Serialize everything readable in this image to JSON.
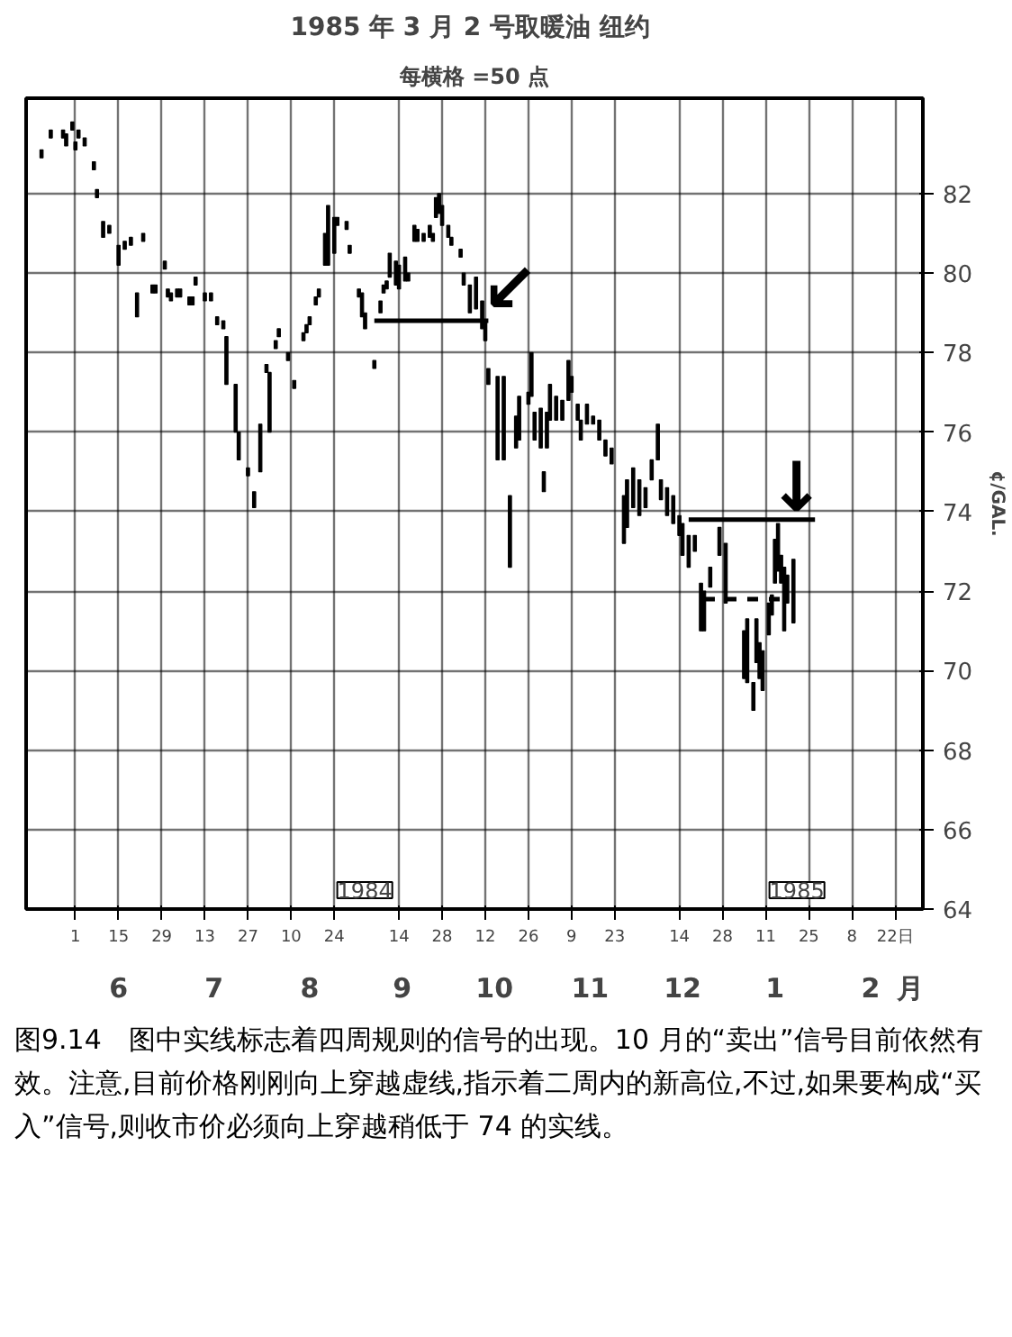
{
  "chart_data": {
    "type": "bar",
    "title": "1985 年 3 月 2 号取暖油  纽约",
    "subtitle": "每横格 =50 点",
    "ylabel": "¢/GAL.",
    "series": [
      {
        "color": "#000000",
        "x": [
          "1984-05-21",
          "1984-05-24",
          "1984-05-28",
          "1984-05-29",
          "1984-05-31",
          "1984-06-01",
          "1984-06-02",
          "1984-06-04",
          "1984-06-07",
          "1984-06-08",
          "1984-06-10",
          "1984-06-12",
          "1984-06-15",
          "1984-06-17",
          "1984-06-19",
          "1984-06-21",
          "1984-06-23",
          "1984-06-26",
          "1984-06-27",
          "1984-06-30",
          "1984-07-01",
          "1984-07-02",
          "1984-07-04",
          "1984-07-05",
          "1984-07-08",
          "1984-07-09",
          "1984-07-10",
          "1984-07-13",
          "1984-07-15",
          "1984-07-17",
          "1984-07-19",
          "1984-07-20",
          "1984-07-23",
          "1984-07-24",
          "1984-07-27",
          "1984-07-29",
          "1984-07-31",
          "1984-08-02",
          "1984-08-03",
          "1984-08-05",
          "1984-08-06",
          "1984-08-09",
          "1984-08-11",
          "1984-08-14",
          "1984-08-15",
          "1984-08-16",
          "1984-08-18",
          "1984-08-19",
          "1984-08-21",
          "1984-08-22",
          "1984-08-24",
          "1984-08-25",
          "1984-08-28",
          "1984-08-29",
          "1984-09-01",
          "1984-09-02",
          "1984-09-03",
          "1984-09-06",
          "1984-09-08",
          "1984-09-09",
          "1984-09-10",
          "1984-09-11",
          "1984-09-13",
          "1984-09-14",
          "1984-09-16",
          "1984-09-17",
          "1984-09-19",
          "1984-09-20",
          "1984-09-22",
          "1984-09-24",
          "1984-09-25",
          "1984-09-26",
          "1984-09-27",
          "1984-09-28",
          "1984-09-30",
          "1984-10-01",
          "1984-10-04",
          "1984-10-05",
          "1984-10-07",
          "1984-10-09",
          "1984-10-11",
          "1984-10-12",
          "1984-10-13",
          "1984-10-16",
          "1984-10-18",
          "1984-10-20",
          "1984-10-22",
          "1984-10-23",
          "1984-10-26",
          "1984-10-27",
          "1984-10-28",
          "1984-10-30",
          "1984-10-31",
          "1984-11-01",
          "1984-11-02",
          "1984-11-04",
          "1984-11-06",
          "1984-11-08",
          "1984-11-09",
          "1984-11-11",
          "1984-11-12",
          "1984-11-14",
          "1984-11-16",
          "1984-11-18",
          "1984-11-20",
          "1984-11-22",
          "1984-11-26",
          "1984-11-27",
          "1984-11-29",
          "1984-12-01",
          "1984-12-03",
          "1984-12-05",
          "1984-12-07",
          "1984-12-08",
          "1984-12-10",
          "1984-12-12",
          "1984-12-14",
          "1984-12-15",
          "1984-12-17",
          "1984-12-19",
          "1984-12-21",
          "1984-12-22",
          "1984-12-24",
          "1984-12-27",
          "1984-12-29",
          "1985-01-04",
          "1985-01-05",
          "1985-01-07",
          "1985-01-08",
          "1985-01-09",
          "1985-01-10",
          "1985-01-12",
          "1985-01-13",
          "1985-01-14",
          "1985-01-15",
          "1985-01-16",
          "1985-01-17",
          "1985-01-18",
          "1985-01-20"
        ],
        "base": [
          82.9,
          83.4,
          83.4,
          83.2,
          83.6,
          83.1,
          83.4,
          83.2,
          82.6,
          81.9,
          80.9,
          81.0,
          80.2,
          80.6,
          80.7,
          78.9,
          80.8,
          79.5,
          79.5,
          80.1,
          79.4,
          79.3,
          79.4,
          79.4,
          79.2,
          79.2,
          79.7,
          79.3,
          79.3,
          78.7,
          78.6,
          77.2,
          76.0,
          75.3,
          74.9,
          74.1,
          75.0,
          77.5,
          76.0,
          78.1,
          78.4,
          77.8,
          77.1,
          78.3,
          78.5,
          78.7,
          79.2,
          79.4,
          80.2,
          80.2,
          80.5,
          81.2,
          81.1,
          80.5,
          79.4,
          78.9,
          78.6,
          77.6,
          79.0,
          79.5,
          79.6,
          79.9,
          79.7,
          79.6,
          79.8,
          79.8,
          80.8,
          80.8,
          80.8,
          80.9,
          80.8,
          81.4,
          81.5,
          81.2,
          80.9,
          80.7,
          80.4,
          79.7,
          79.0,
          79.1,
          78.6,
          78.3,
          77.2,
          75.3,
          75.3,
          72.6,
          75.6,
          75.8,
          76.7,
          76.9,
          75.8,
          75.6,
          74.5,
          75.6,
          76.3,
          76.3,
          76.3,
          76.8,
          77.0,
          76.3,
          75.8,
          76.2,
          76.2,
          75.8,
          75.4,
          75.2,
          73.2,
          73.6,
          74.1,
          73.9,
          74.1,
          74.8,
          75.3,
          74.3,
          73.9,
          73.7,
          73.4,
          72.9,
          72.6,
          73.0,
          71.0,
          71.0,
          72.1,
          72.9,
          71.7,
          69.8,
          69.7,
          69.0,
          70.2,
          69.8,
          69.5,
          70.9,
          71.4,
          72.2,
          72.5,
          72.2,
          71.0,
          71.7,
          71.2
        ],
        "values": [
          0.2,
          0.2,
          0.2,
          0.3,
          0.2,
          0.2,
          0.2,
          0.2,
          0.2,
          0.2,
          0.4,
          0.2,
          0.5,
          0.2,
          0.2,
          0.6,
          0.2,
          0.2,
          0.2,
          0.2,
          0.2,
          0.2,
          0.2,
          0.2,
          0.2,
          0.2,
          0.2,
          0.2,
          0.2,
          0.2,
          0.2,
          1.2,
          1.2,
          0.7,
          0.2,
          0.4,
          1.2,
          0.2,
          1.5,
          0.2,
          0.2,
          0.2,
          0.2,
          0.2,
          0.2,
          0.2,
          0.2,
          0.2,
          0.8,
          1.5,
          0.9,
          0.2,
          0.2,
          0.2,
          0.2,
          0.6,
          0.4,
          0.2,
          0.3,
          0.2,
          0.2,
          0.6,
          0.6,
          0.6,
          0.6,
          0.2,
          0.4,
          0.3,
          0.2,
          0.3,
          0.2,
          0.5,
          0.5,
          0.5,
          0.3,
          0.2,
          0.2,
          0.3,
          0.7,
          0.8,
          0.7,
          0.5,
          0.4,
          2.1,
          2.1,
          1.8,
          0.8,
          1.1,
          0.3,
          1.1,
          0.7,
          1.0,
          0.5,
          0.9,
          0.9,
          0.6,
          0.5,
          1.0,
          0.4,
          0.4,
          0.5,
          0.5,
          0.2,
          0.5,
          0.4,
          0.4,
          1.2,
          1.2,
          1.0,
          0.9,
          0.5,
          0.5,
          0.9,
          0.5,
          0.7,
          0.7,
          0.5,
          0.8,
          0.8,
          0.4,
          1.2,
          1.0,
          0.5,
          0.7,
          1.5,
          1.2,
          1.6,
          0.7,
          1.1,
          0.9,
          1.0,
          0.8,
          0.5,
          1.1,
          1.2,
          0.7,
          1.6,
          0.7,
          1.6
        ]
      },
      {
        "type": "line",
        "color": "#000000",
        "line_style": "solid",
        "x": [
          "1984-09-06",
          "1984-10-13"
        ],
        "values": [
          78.8,
          78.8
        ]
      },
      {
        "type": "line",
        "color": "#000000",
        "line_style": "solid",
        "x": [
          "1984-12-17",
          "1985-01-27"
        ],
        "values": [
          73.8,
          73.8
        ]
      },
      {
        "type": "line",
        "color": "#000000",
        "line_style": "dashed",
        "x": [
          "1984-12-22",
          "1985-01-18"
        ],
        "values": [
          71.8,
          71.8
        ]
      }
    ],
    "xlim": [
      "1984-05-16",
      "1985-03-03"
    ],
    "xticks": [
      {
        "value": "1984-06-01",
        "label": "1"
      },
      {
        "value": "1984-06-15",
        "label": "15"
      },
      {
        "value": "1984-06-29",
        "label": "29"
      },
      {
        "value": "1984-07-13",
        "label": "13"
      },
      {
        "value": "1984-07-27",
        "label": "27"
      },
      {
        "value": "1984-08-10",
        "label": "10"
      },
      {
        "value": "1984-08-24",
        "label": "24"
      },
      {
        "value": "1984-09-14",
        "label": "14"
      },
      {
        "value": "1984-09-28",
        "label": "28"
      },
      {
        "value": "1984-10-12",
        "label": "12"
      },
      {
        "value": "1984-10-26",
        "label": "26"
      },
      {
        "value": "1984-11-09",
        "label": "9"
      },
      {
        "value": "1984-11-23",
        "label": "23"
      },
      {
        "value": "1984-12-14",
        "label": "14"
      },
      {
        "value": "1984-12-28",
        "label": "28"
      },
      {
        "value": "1985-01-11",
        "label": "11"
      },
      {
        "value": "1985-01-25",
        "label": "25"
      },
      {
        "value": "1985-02-08",
        "label": "8"
      },
      {
        "value": "1985-02-22",
        "label": "22日"
      }
    ],
    "x2lim": [
      "1984-05-16",
      "1985-03-03"
    ],
    "x2ticks": [
      {
        "value": "1984-06-15",
        "label": "6"
      },
      {
        "value": "1984-07-16",
        "label": "7"
      },
      {
        "value": "1984-08-16",
        "label": "8"
      },
      {
        "value": "1984-09-15",
        "label": "9"
      },
      {
        "value": "1984-10-15",
        "label": "10"
      },
      {
        "value": "1984-11-15",
        "label": "11"
      },
      {
        "value": "1984-12-15",
        "label": "12"
      },
      {
        "value": "1985-01-14",
        "label": "1"
      },
      {
        "value": "1985-02-14",
        "label": "2"
      },
      {
        "value": "1985-02-27",
        "label": "月"
      }
    ],
    "ylim": [
      64,
      84.4
    ],
    "yticks": [
      64,
      66,
      68,
      70,
      72,
      74,
      76,
      78,
      80,
      82
    ],
    "grid": true,
    "annotations": [
      "1984",
      "1985",
      {
        "text": "↙",
        "x": "1984-10-13",
        "y": 78.8
      },
      {
        "text": "↓",
        "x": "1985-01-14",
        "y": 73.8
      },
      "图9.14　图中实线标志着四周规则的信号的出现。10 月的“卖出”信号目前依然有效。注意,目前价格刚刚向上穿越虚线,指示着二周内的新高位,不过,如果要构成“买入”信号,则收市价必须向上穿越稍低于 74 的实线。"
    ]
  }
}
